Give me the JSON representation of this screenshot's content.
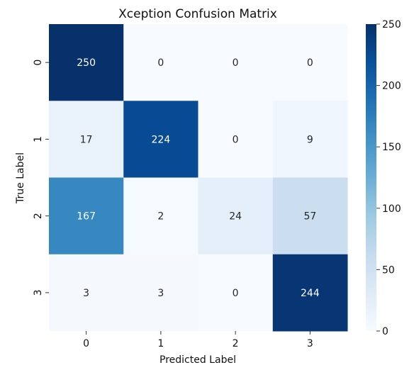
{
  "chart_data": {
    "type": "heatmap",
    "title": "Xception Confusion Matrix",
    "xlabel": "Predicted Label",
    "ylabel": "True Label",
    "x_categories": [
      "0",
      "1",
      "2",
      "3"
    ],
    "y_categories": [
      "0",
      "1",
      "2",
      "3"
    ],
    "values": [
      [
        250,
        0,
        0,
        0
      ],
      [
        17,
        224,
        0,
        9
      ],
      [
        167,
        2,
        24,
        57
      ],
      [
        3,
        3,
        0,
        244
      ]
    ],
    "colorscale": "Blues",
    "zlim": [
      0,
      250
    ],
    "colorbar_ticks": [
      "0",
      "50",
      "100",
      "150",
      "200",
      "250"
    ]
  }
}
